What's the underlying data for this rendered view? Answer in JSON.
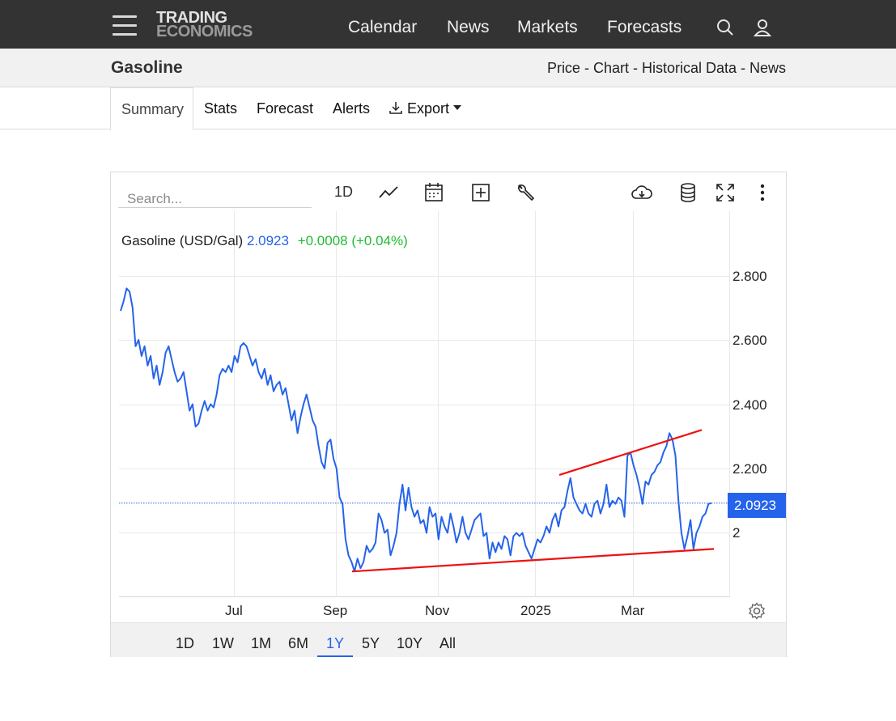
{
  "header": {
    "logo_line1": "TRADING",
    "logo_line2": "ECONOMICS",
    "nav": [
      "Calendar",
      "News",
      "Markets",
      "Forecasts"
    ],
    "icons": [
      "menu-icon",
      "search-icon",
      "user-icon"
    ]
  },
  "title_bar": {
    "title": "Gasoline",
    "links": "Price - Chart - Historical Data - News"
  },
  "tabs": {
    "summary": "Summary",
    "stats": "Stats",
    "forecast": "Forecast",
    "alerts": "Alerts",
    "export": "Export"
  },
  "toolbar": {
    "search_placeholder": "Search...",
    "interval": "1D",
    "icons": [
      "line-chart-icon",
      "calendar-icon",
      "compare-add-icon",
      "wrench-icon",
      "cloud-download-icon",
      "database-icon",
      "fullscreen-icon",
      "more-vertical-icon"
    ]
  },
  "legend": {
    "name": "Gasoline (USD/Gal)",
    "price": "2.0923",
    "change": "+0.0008 (+0.04%)"
  },
  "price_tag": "2.0923",
  "ranges": {
    "items": [
      "1D",
      "1W",
      "1M",
      "6M",
      "1Y",
      "5Y",
      "10Y",
      "All"
    ],
    "selected": "1Y"
  },
  "colors": {
    "line": "#2563eb",
    "trendline": "#ee1111",
    "change_positive": "#22bb33",
    "topbar": "#333333"
  },
  "chart_data": {
    "type": "line",
    "title": "Gasoline (USD/Gal)",
    "xlabel": "",
    "ylabel": "",
    "x_ticks": [
      "Jul",
      "Sep",
      "Nov",
      "2025",
      "Mar"
    ],
    "y_ticks": [
      "2.800",
      "2.600",
      "2.400",
      "2.200",
      "2"
    ],
    "ylim": [
      1.8,
      3.0
    ],
    "grid": true,
    "last_value": 2.0923,
    "series": [
      {
        "values": [
          2.69,
          2.72,
          2.76,
          2.75,
          2.7,
          2.58,
          2.6,
          2.55,
          2.58,
          2.52,
          2.55,
          2.48,
          2.52,
          2.46,
          2.5,
          2.56,
          2.58,
          2.54,
          2.5,
          2.47,
          2.48,
          2.5,
          2.44,
          2.38,
          2.4,
          2.33,
          2.34,
          2.38,
          2.41,
          2.38,
          2.4,
          2.39,
          2.43,
          2.49,
          2.51,
          2.5,
          2.52,
          2.5,
          2.55,
          2.53,
          2.58,
          2.59,
          2.58,
          2.55,
          2.52,
          2.54,
          2.5,
          2.48,
          2.51,
          2.46,
          2.49,
          2.44,
          2.46,
          2.47,
          2.43,
          2.45,
          2.4,
          2.35,
          2.38,
          2.31,
          2.36,
          2.4,
          2.43,
          2.39,
          2.35,
          2.33,
          2.27,
          2.22,
          2.2,
          2.28,
          2.29,
          2.23,
          2.2,
          2.11,
          2.09,
          1.98,
          1.93,
          1.91,
          1.88,
          1.92,
          1.89,
          1.91,
          1.96,
          1.94,
          1.95,
          1.97,
          2.06,
          2.04,
          2.0,
          2.01,
          1.93,
          1.96,
          2.0,
          2.09,
          2.15,
          2.07,
          2.14,
          2.08,
          2.05,
          2.07,
          2.03,
          2.04,
          2.0,
          2.08,
          2.05,
          2.06,
          1.98,
          2.05,
          2.02,
          2.0,
          2.06,
          2.02,
          1.97,
          2.0,
          2.05,
          2.0,
          1.98,
          2.01,
          2.04,
          2.05,
          2.06,
          1.99,
          2.0,
          1.92,
          1.97,
          1.94,
          1.97,
          1.95,
          1.99,
          1.98,
          1.93,
          1.99,
          2.0,
          1.99,
          2.0,
          1.96,
          1.94,
          1.92,
          1.95,
          1.98,
          1.97,
          1.99,
          2.02,
          2.0,
          2.04,
          2.06,
          2.02,
          2.07,
          2.08,
          2.13,
          2.17,
          2.11,
          2.09,
          2.07,
          2.06,
          2.09,
          2.06,
          2.05,
          2.09,
          2.1,
          2.06,
          2.09,
          2.15,
          2.08,
          2.1,
          2.09,
          2.11,
          2.1,
          2.05,
          2.24,
          2.25,
          2.21,
          2.18,
          2.14,
          2.09,
          2.16,
          2.15,
          2.18,
          2.19,
          2.21,
          2.22,
          2.25,
          2.27,
          2.31,
          2.29,
          2.24,
          2.1,
          2.0,
          1.95,
          1.99,
          2.04,
          1.95,
          2.0,
          2.02,
          2.05,
          2.06,
          2.09,
          2.0923
        ]
      }
    ],
    "annotations": [
      {
        "type": "trendline",
        "from": {
          "x": "Sep",
          "y": 1.88
        },
        "to": {
          "x": "Mar",
          "y": 1.95
        }
      },
      {
        "type": "trendline",
        "from": {
          "x": "2025",
          "y": 2.18
        },
        "to": {
          "x": "Mar",
          "y": 2.32
        }
      }
    ]
  }
}
